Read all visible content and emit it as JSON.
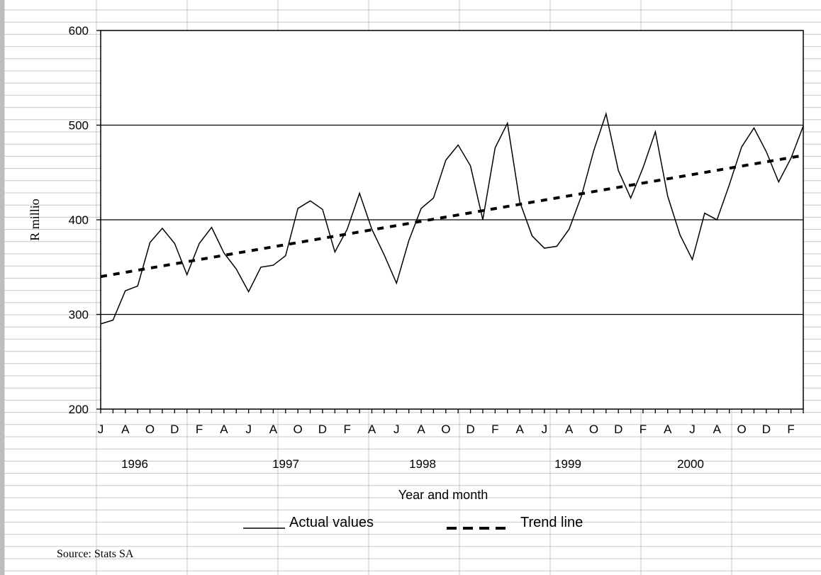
{
  "chart_data": {
    "type": "line",
    "title": "",
    "ylabel": "R millio",
    "xlabel": "Year  and month",
    "ylim": [
      200,
      600
    ],
    "y_ticks": [
      "600",
      "500",
      "400",
      "300",
      "200"
    ],
    "grid": "horizontal",
    "month_ticks": [
      "J",
      "A",
      "O",
      "D",
      "F",
      "A",
      "J",
      "A",
      "O",
      "D",
      "F",
      "A",
      "J",
      "A",
      "O",
      "D",
      "F",
      "A",
      "J",
      "A",
      "O",
      "D",
      "F",
      "A",
      "J",
      "A",
      "O",
      "D",
      "F"
    ],
    "year_labels": [
      "1996",
      "1997",
      "1998",
      "1999",
      "2000"
    ],
    "series": [
      {
        "name": "Actual values",
        "style": "solid",
        "values": [
          290,
          294,
          325,
          330,
          376,
          391,
          375,
          342,
          375,
          392,
          365,
          348,
          324,
          350,
          352,
          362,
          412,
          420,
          411,
          366,
          390,
          428,
          390,
          363,
          333,
          378,
          412,
          423,
          463,
          479,
          457,
          400,
          476,
          502,
          419,
          383,
          370,
          372,
          390,
          425,
          473,
          512,
          452,
          423,
          455,
          493,
          425,
          384,
          358,
          407,
          400,
          437,
          477,
          497,
          472,
          440,
          465,
          499
        ]
      },
      {
        "name": "Trend line",
        "style": "dashed",
        "start": 340,
        "end": 468
      }
    ],
    "legend": [
      "Actual values",
      "Trend line"
    ],
    "legend_position": "bottom",
    "source": "Source: Stats SA"
  },
  "colors": {
    "line": "#000000",
    "sheet_grid": "#c8c8c8",
    "background": "#ffffff"
  }
}
